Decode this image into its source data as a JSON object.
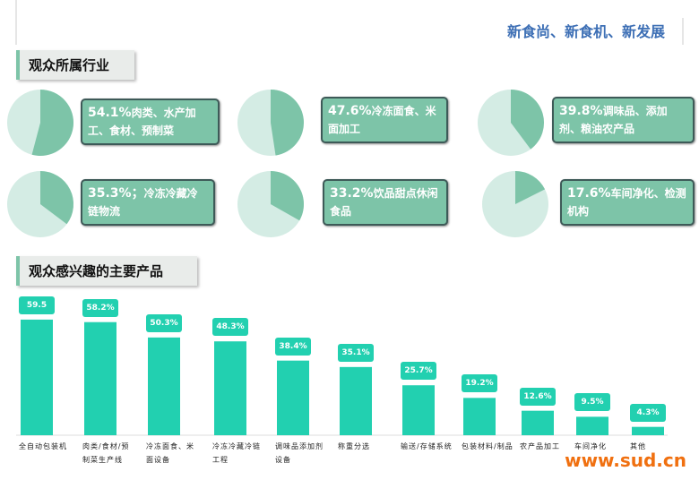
{
  "header": "新食尚、新食机、新发展",
  "watermark": "www.sud.cn",
  "chart_data": [
    {
      "type": "pie",
      "title": "观众所属行业",
      "categories": [
        "肉类、水产加工、食材、预制菜",
        "冷冻面食、米面加工",
        "调味品、添加剂、粮油农产品",
        "冷冻冷藏冷链物流",
        "饮品甜点休闲食品",
        "车间净化、检测机构"
      ],
      "values": [
        54.1,
        47.6,
        39.8,
        35.3,
        33.2,
        17.6
      ],
      "value_labels": [
        "54.1%",
        "47.6%",
        "39.8%",
        "35.3%；",
        "33.2%",
        "17.6%"
      ],
      "color": "#7dc4a8",
      "rest_color": "#d4ece4"
    },
    {
      "type": "bar",
      "title": "观众感兴趣的主要产品",
      "categories": [
        "全自动包装机",
        "肉类/食材/预制菜生产线",
        "冷冻面食、米面设备",
        "冷冻冷藏冷链工程",
        "调味品添加剂设备",
        "称重分选",
        "输送/存储系统",
        "包装材料/制品",
        "农产品加工",
        "车间净化",
        "其他"
      ],
      "values": [
        59.5,
        58.2,
        50.3,
        48.3,
        38.4,
        35.1,
        25.7,
        19.2,
        12.6,
        9.5,
        4.3
      ],
      "value_labels": [
        "59.5",
        "58.2%",
        "50.3%",
        "48.3%",
        "38.4%",
        "35.1%",
        "25.7%",
        "19.2%",
        "12.6%",
        "9.5%",
        "4.3%"
      ],
      "color": "#22d0b0"
    }
  ]
}
